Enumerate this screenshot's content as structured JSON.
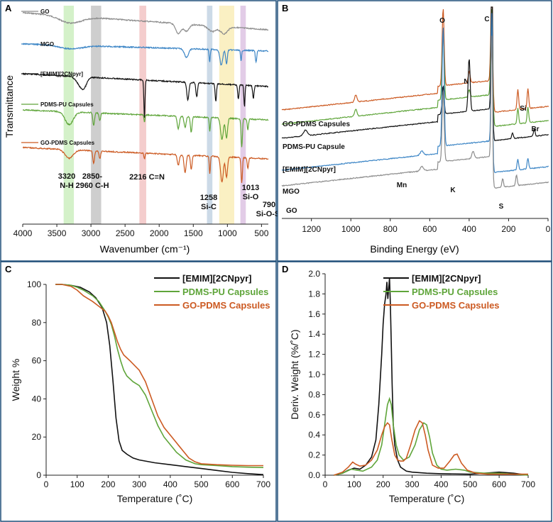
{
  "colors": {
    "go": "#8c8c8c",
    "mgo": "#3d86c6",
    "emim": "#111111",
    "pdms_pu": "#5fa53a",
    "go_pdms": "#cc5a22",
    "band_green": "#cdeec0",
    "band_gray": "#bdbdbd",
    "band_pink": "#f2c4c4",
    "band_blue": "#c3d3e3",
    "band_yellow": "#f9edb8",
    "band_purple": "#ddc3e3",
    "panel_border": "#1f4e79"
  },
  "chart_data": [
    {
      "panel": "A",
      "type": "line",
      "title": "",
      "xlabel": "Wavenumber (cm⁻¹)",
      "ylabel": "Transmittance",
      "xlim": [
        4000,
        400
      ],
      "xticks": [
        "4000",
        "3500",
        "3000",
        "2500",
        "2000",
        "1500",
        "1000",
        "500"
      ],
      "legend": [
        "GO",
        "MGO",
        "[EMIM][2CNpyr]",
        "PDMS-PU Capsules",
        "GO-PDMS Capsules"
      ],
      "bands": [
        {
          "from": 3400,
          "to": 3250
        },
        {
          "from": 3000,
          "to": 2850
        },
        {
          "from": 2290,
          "to": 2190
        },
        {
          "from": 1300,
          "to": 1220
        },
        {
          "from": 1120,
          "to": 900
        },
        {
          "from": 810,
          "to": 730
        }
      ],
      "annotations": [
        {
          "line1": "3320",
          "line2": "N-H"
        },
        {
          "line1": "2850-",
          "line2": "2960 C-H"
        },
        {
          "line1": "2216 C≡N",
          "line2": ""
        },
        {
          "line1": "1258",
          "line2": "Si-C"
        },
        {
          "line1": "1013",
          "line2": "Si-O"
        },
        {
          "line1": "790",
          "line2": "Si-O-Si"
        }
      ]
    },
    {
      "panel": "B",
      "type": "line",
      "title": "",
      "xlabel": "Binding Energy (eV)",
      "ylabel": "",
      "xlim": [
        1350,
        0
      ],
      "xticks": [
        "1200",
        "1000",
        "800",
        "600",
        "400",
        "200",
        "0"
      ],
      "series_labels": [
        "GO-PDMS Capsules",
        "PDMS-PU Capsule",
        "[EMIM][2CNpyr]",
        "MGO",
        "GO"
      ],
      "peak_labels": [
        "O",
        "C",
        "N",
        "Si",
        "Br",
        "Mn",
        "K",
        "S"
      ]
    },
    {
      "panel": "C",
      "type": "line",
      "title": "",
      "xlabel": "Temperature (˚C)",
      "ylabel": "Weight %",
      "xlim": [
        0,
        700
      ],
      "ylim": [
        0,
        100
      ],
      "xticks": [
        "0",
        "100",
        "200",
        "300",
        "400",
        "500",
        "600",
        "700"
      ],
      "yticks": [
        "0",
        "20",
        "40",
        "60",
        "80",
        "100"
      ],
      "legend": "top-right",
      "series": [
        {
          "name": "[EMIM][2CNpyr]",
          "x": [
            30,
            50,
            80,
            110,
            140,
            160,
            180,
            195,
            205,
            215,
            225,
            235,
            245,
            260,
            280,
            300,
            350,
            400,
            450,
            500,
            550,
            600,
            650,
            700
          ],
          "y": [
            100,
            100,
            99.5,
            98.5,
            96,
            93,
            88,
            80,
            68,
            50,
            30,
            18,
            13,
            11,
            9,
            8,
            6.5,
            5.5,
            4.5,
            3.5,
            2.5,
            1.5,
            0.8,
            0.3
          ]
        },
        {
          "name": "PDMS-PU Capsules",
          "x": [
            30,
            50,
            80,
            100,
            120,
            150,
            170,
            190,
            200,
            210,
            220,
            230,
            240,
            250,
            260,
            280,
            300,
            320,
            340,
            360,
            380,
            400,
            420,
            450,
            480,
            500,
            550,
            600,
            650,
            700
          ],
          "y": [
            100,
            100,
            99.5,
            98.5,
            97,
            94,
            91,
            86,
            83,
            79,
            73,
            66,
            60,
            55,
            52,
            49,
            47,
            42,
            34,
            26,
            20,
            16,
            12,
            8,
            6,
            5.5,
            5,
            4.5,
            4.2,
            4
          ]
        },
        {
          "name": "GO-PDMS Capsules",
          "x": [
            30,
            50,
            80,
            100,
            120,
            150,
            170,
            190,
            200,
            210,
            220,
            230,
            240,
            250,
            270,
            300,
            320,
            340,
            360,
            380,
            400,
            420,
            440,
            460,
            480,
            500,
            550,
            600,
            650,
            700
          ],
          "y": [
            100,
            100,
            99,
            97,
            94,
            91,
            88.5,
            86,
            83.5,
            80,
            75,
            70,
            66,
            63,
            60,
            55,
            49,
            40,
            31,
            25,
            21,
            17,
            13,
            9,
            7,
            6,
            5.5,
            5.2,
            5,
            5
          ]
        }
      ]
    },
    {
      "panel": "D",
      "type": "line",
      "title": "",
      "xlabel": "Temperature (˚C)",
      "ylabel": "Deriv. Weight (%/˚C)",
      "xlim": [
        0,
        700
      ],
      "ylim": [
        0,
        2.0
      ],
      "xticks": [
        "0",
        "100",
        "200",
        "300",
        "400",
        "500",
        "600",
        "700"
      ],
      "yticks": [
        "0.0",
        "0.2",
        "0.4",
        "0.6",
        "0.8",
        "1.0",
        "1.2",
        "1.4",
        "1.6",
        "1.8",
        "2.0"
      ],
      "legend": "top-right",
      "series": [
        {
          "name": "[EMIM][2CNpyr]",
          "x": [
            30,
            60,
            80,
            100,
            120,
            140,
            160,
            175,
            185,
            195,
            200,
            205,
            210,
            213,
            216,
            219,
            222,
            225,
            228,
            231,
            235,
            240,
            250,
            260,
            280,
            300,
            350,
            400,
            500,
            550,
            600,
            650,
            700
          ],
          "y": [
            0,
            0.02,
            0.05,
            0.07,
            0.06,
            0.1,
            0.18,
            0.35,
            0.7,
            1.2,
            1.5,
            1.7,
            1.8,
            1.92,
            1.75,
            1.85,
            1.96,
            1.7,
            1.3,
            0.9,
            0.5,
            0.3,
            0.15,
            0.08,
            0.04,
            0.03,
            0.02,
            0.015,
            0.01,
            0.02,
            0.03,
            0.02,
            0
          ]
        },
        {
          "name": "PDMS-PU Capsules",
          "x": [
            30,
            60,
            90,
            110,
            130,
            160,
            180,
            195,
            205,
            215,
            222,
            228,
            235,
            245,
            255,
            270,
            290,
            310,
            325,
            340,
            350,
            360,
            370,
            385,
            400,
            420,
            450,
            480,
            500,
            550,
            600,
            650,
            700
          ],
          "y": [
            0,
            0.02,
            0.06,
            0.05,
            0.04,
            0.08,
            0.15,
            0.3,
            0.5,
            0.7,
            0.76,
            0.7,
            0.5,
            0.3,
            0.2,
            0.15,
            0.18,
            0.3,
            0.45,
            0.52,
            0.5,
            0.38,
            0.22,
            0.1,
            0.06,
            0.05,
            0.06,
            0.05,
            0.03,
            0.02,
            0.02,
            0.01,
            0
          ]
        },
        {
          "name": "GO-PDMS Capsules",
          "x": [
            30,
            60,
            80,
            95,
            105,
            120,
            140,
            160,
            180,
            195,
            205,
            215,
            222,
            230,
            240,
            250,
            260,
            270,
            280,
            295,
            310,
            325,
            335,
            345,
            355,
            370,
            390,
            410,
            430,
            445,
            455,
            470,
            490,
            520,
            560,
            600,
            650,
            700
          ],
          "y": [
            0,
            0.03,
            0.08,
            0.13,
            0.11,
            0.09,
            0.1,
            0.15,
            0.25,
            0.4,
            0.48,
            0.52,
            0.5,
            0.35,
            0.2,
            0.15,
            0.14,
            0.14,
            0.17,
            0.3,
            0.45,
            0.54,
            0.52,
            0.4,
            0.25,
            0.1,
            0.07,
            0.07,
            0.14,
            0.2,
            0.21,
            0.12,
            0.05,
            0.02,
            0.01,
            0.01,
            0.01,
            0.01
          ]
        }
      ]
    }
  ]
}
